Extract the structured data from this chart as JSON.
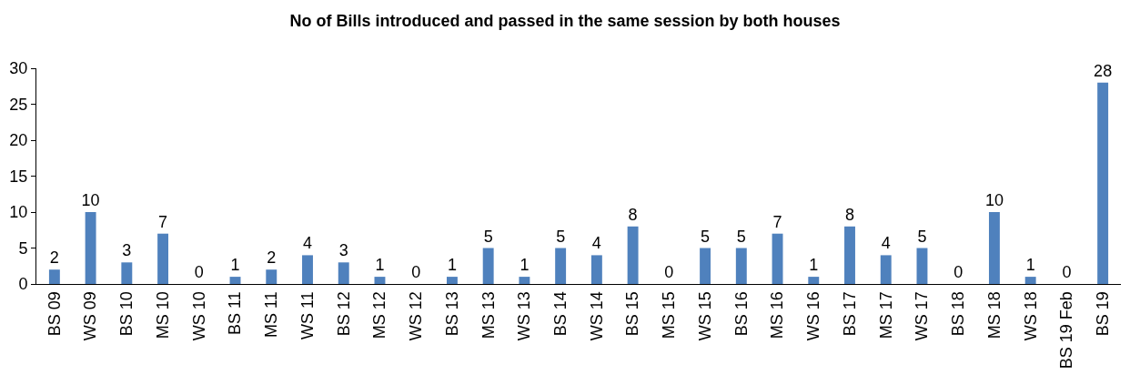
{
  "chart_data": {
    "type": "bar",
    "title": "No of Bills introduced and passed in the same session by both houses",
    "categories": [
      "BS 09",
      "WS 09",
      "BS 10",
      "MS 10",
      "WS 10",
      "BS 11",
      "MS 11",
      "WS 11",
      "BS 12",
      "MS 12",
      "WS 12",
      "BS 13",
      "MS 13",
      "WS 13",
      "BS 14",
      "WS 14",
      "BS 15",
      "MS 15",
      "WS 15",
      "BS 16",
      "MS 16",
      "WS 16",
      "BS 17",
      "MS 17",
      "WS 17",
      "BS 18",
      "MS 18",
      "WS 18",
      "BS 19 Feb",
      "BS 19"
    ],
    "values": [
      2,
      10,
      3,
      7,
      0,
      1,
      2,
      4,
      3,
      1,
      0,
      1,
      5,
      1,
      5,
      4,
      8,
      0,
      5,
      5,
      7,
      1,
      8,
      4,
      5,
      0,
      10,
      1,
      0,
      28
    ],
    "color": "#4f81bd",
    "ylim": [
      0,
      30
    ],
    "yticks": [
      0,
      5,
      10,
      15,
      20,
      25,
      30
    ],
    "grid": false,
    "legend": false,
    "data_labels": true
  }
}
